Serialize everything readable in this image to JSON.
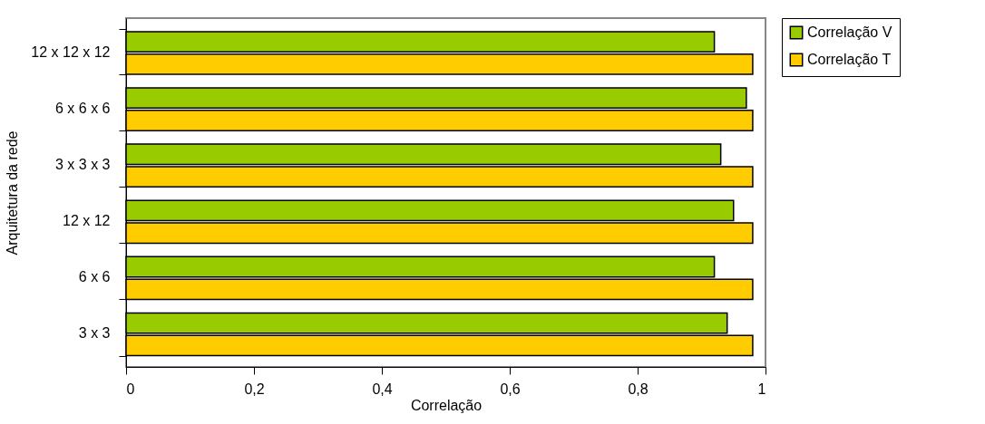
{
  "chart_data": {
    "type": "bar",
    "orientation": "horizontal",
    "xlabel": "Correlação",
    "ylabel": "Arquitetura da rede",
    "categories": [
      "12 x 12 x 12",
      "6 x 6 x 6",
      "3 x 3 x 3",
      "12 x 12",
      "6 x 6",
      "3 x 3"
    ],
    "series": [
      {
        "name": "Correlação V",
        "color": "#99cc00",
        "values": [
          0.92,
          0.97,
          0.93,
          0.95,
          0.92,
          0.94
        ]
      },
      {
        "name": "Correlação T",
        "color": "#ffcc00",
        "values": [
          0.98,
          0.98,
          0.98,
          0.98,
          0.98,
          0.98
        ]
      }
    ],
    "xlim": [
      0,
      1
    ],
    "xticks": [
      {
        "value": 0,
        "label": "0"
      },
      {
        "value": 0.2,
        "label": "0,2"
      },
      {
        "value": 0.4,
        "label": "0,4"
      },
      {
        "value": 0.6,
        "label": "0,6"
      },
      {
        "value": 0.8,
        "label": "0,8"
      },
      {
        "value": 1,
        "label": "1"
      }
    ],
    "grid": false,
    "legend": "right"
  }
}
